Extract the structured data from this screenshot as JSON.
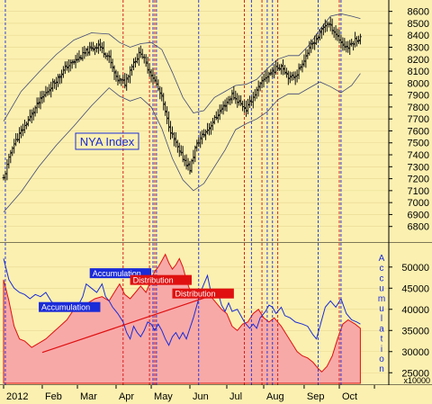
{
  "chart_data": [
    {
      "type": "ohlc",
      "panel": "price",
      "label": "NYA Index",
      "y_ticks": [
        6800,
        6900,
        7000,
        7100,
        7200,
        7300,
        7400,
        7500,
        7600,
        7700,
        7800,
        7900,
        8000,
        8100,
        8200,
        8300,
        8400,
        8500,
        8600
      ],
      "ylim": [
        6700,
        8650
      ],
      "month_starts": [
        0,
        22,
        42,
        64,
        84,
        106,
        127,
        148,
        171,
        191,
        211
      ],
      "n_days": 213,
      "close_anchors": [
        [
          0,
          7200
        ],
        [
          5,
          7470
        ],
        [
          12,
          7640
        ],
        [
          20,
          7840
        ],
        [
          28,
          7990
        ],
        [
          36,
          8140
        ],
        [
          42,
          8200
        ],
        [
          48,
          8270
        ],
        [
          54,
          8320
        ],
        [
          60,
          8210
        ],
        [
          64,
          8040
        ],
        [
          69,
          8000
        ],
        [
          73,
          8150
        ],
        [
          78,
          8260
        ],
        [
          82,
          8130
        ],
        [
          86,
          8020
        ],
        [
          90,
          7880
        ],
        [
          93,
          7690
        ],
        [
          96,
          7560
        ],
        [
          100,
          7420
        ],
        [
          104,
          7330
        ],
        [
          106,
          7280
        ],
        [
          109,
          7450
        ],
        [
          112,
          7540
        ],
        [
          116,
          7610
        ],
        [
          121,
          7720
        ],
        [
          126,
          7820
        ],
        [
          130,
          7900
        ],
        [
          134,
          7840
        ],
        [
          138,
          7780
        ],
        [
          141,
          7860
        ],
        [
          145,
          7960
        ],
        [
          149,
          8050
        ],
        [
          154,
          8110
        ],
        [
          158,
          8150
        ],
        [
          163,
          8040
        ],
        [
          167,
          8080
        ],
        [
          171,
          8200
        ],
        [
          175,
          8310
        ],
        [
          179,
          8390
        ],
        [
          182,
          8470
        ],
        [
          184,
          8500
        ],
        [
          187,
          8460
        ],
        [
          190,
          8390
        ],
        [
          193,
          8320
        ],
        [
          196,
          8300
        ],
        [
          200,
          8360
        ],
        [
          203,
          8380
        ]
      ],
      "bollinger": {
        "upper": [
          [
            0,
            7680
          ],
          [
            10,
            7930
          ],
          [
            20,
            8090
          ],
          [
            30,
            8240
          ],
          [
            40,
            8360
          ],
          [
            50,
            8420
          ],
          [
            60,
            8410
          ],
          [
            66,
            8340
          ],
          [
            72,
            8300
          ],
          [
            78,
            8330
          ],
          [
            84,
            8340
          ],
          [
            90,
            8280
          ],
          [
            96,
            8090
          ],
          [
            102,
            7880
          ],
          [
            108,
            7750
          ],
          [
            114,
            7770
          ],
          [
            120,
            7880
          ],
          [
            126,
            7930
          ],
          [
            132,
            7980
          ],
          [
            138,
            7990
          ],
          [
            144,
            8030
          ],
          [
            150,
            8120
          ],
          [
            156,
            8200
          ],
          [
            162,
            8230
          ],
          [
            168,
            8230
          ],
          [
            174,
            8320
          ],
          [
            180,
            8450
          ],
          [
            186,
            8560
          ],
          [
            192,
            8580
          ],
          [
            198,
            8560
          ],
          [
            203,
            8540
          ]
        ],
        "lower": [
          [
            0,
            6920
          ],
          [
            10,
            7090
          ],
          [
            20,
            7300
          ],
          [
            30,
            7480
          ],
          [
            40,
            7640
          ],
          [
            50,
            7810
          ],
          [
            60,
            7960
          ],
          [
            66,
            7890
          ],
          [
            72,
            7850
          ],
          [
            78,
            7880
          ],
          [
            84,
            7800
          ],
          [
            90,
            7620
          ],
          [
            96,
            7370
          ],
          [
            102,
            7190
          ],
          [
            108,
            7100
          ],
          [
            114,
            7160
          ],
          [
            120,
            7300
          ],
          [
            126,
            7440
          ],
          [
            132,
            7610
          ],
          [
            138,
            7660
          ],
          [
            144,
            7700
          ],
          [
            150,
            7760
          ],
          [
            156,
            7860
          ],
          [
            162,
            7910
          ],
          [
            168,
            7910
          ],
          [
            174,
            7960
          ],
          [
            180,
            8010
          ],
          [
            186,
            7970
          ],
          [
            192,
            7920
          ],
          [
            198,
            7980
          ],
          [
            203,
            8080
          ]
        ]
      }
    },
    {
      "type": "area-line",
      "panel": "indicator",
      "y_ticks": [
        25000,
        30000,
        35000,
        40000,
        45000,
        50000
      ],
      "ylim": [
        22500,
        54000
      ],
      "multiplier_label": "x10000",
      "vertical_legend": "Accumulation",
      "area_series": [
        [
          0,
          47000
        ],
        [
          3,
          42000
        ],
        [
          6,
          36000
        ],
        [
          9,
          33000
        ],
        [
          12,
          32500
        ],
        [
          16,
          31000
        ],
        [
          20,
          32000
        ],
        [
          24,
          33000
        ],
        [
          28,
          34500
        ],
        [
          32,
          36000
        ],
        [
          36,
          37500
        ],
        [
          40,
          40000
        ],
        [
          44,
          41500
        ],
        [
          48,
          41500
        ],
        [
          52,
          42500
        ],
        [
          56,
          43000
        ],
        [
          60,
          42000
        ],
        [
          63,
          44000
        ],
        [
          66,
          46000
        ],
        [
          69,
          43500
        ],
        [
          72,
          42500
        ],
        [
          75,
          44000
        ],
        [
          78,
          45500
        ],
        [
          81,
          44000
        ],
        [
          84,
          47000
        ],
        [
          86,
          49000
        ],
        [
          88,
          50000
        ],
        [
          90,
          51500
        ],
        [
          92,
          53000
        ],
        [
          94,
          51000
        ],
        [
          96,
          49500
        ],
        [
          98,
          50500
        ],
        [
          100,
          52000
        ],
        [
          102,
          50000
        ],
        [
          104,
          47000
        ],
        [
          106,
          44500
        ],
        [
          109,
          43500
        ],
        [
          112,
          44000
        ],
        [
          115,
          44500
        ],
        [
          118,
          43000
        ],
        [
          121,
          41500
        ],
        [
          124,
          40000
        ],
        [
          127,
          39000
        ],
        [
          130,
          36000
        ],
        [
          133,
          35000
        ],
        [
          136,
          36500
        ],
        [
          139,
          37000
        ],
        [
          142,
          39000
        ],
        [
          145,
          40000
        ],
        [
          148,
          38000
        ],
        [
          151,
          37000
        ],
        [
          154,
          38000
        ],
        [
          156,
          37000
        ],
        [
          158,
          36000
        ],
        [
          161,
          34000
        ],
        [
          164,
          32000
        ],
        [
          167,
          30000
        ],
        [
          170,
          29000
        ],
        [
          173,
          28500
        ],
        [
          176,
          27500
        ],
        [
          179,
          26000
        ],
        [
          181,
          25200
        ],
        [
          184,
          26500
        ],
        [
          187,
          29000
        ],
        [
          190,
          33000
        ],
        [
          193,
          36500
        ],
        [
          196,
          37500
        ],
        [
          200,
          36500
        ],
        [
          203,
          35500
        ]
      ],
      "blue_series": [
        [
          0,
          52000
        ],
        [
          3,
          47000
        ],
        [
          6,
          45000
        ],
        [
          9,
          44000
        ],
        [
          12,
          43500
        ],
        [
          15,
          42500
        ],
        [
          18,
          43500
        ],
        [
          21,
          43000
        ],
        [
          24,
          44000
        ],
        [
          27,
          42000
        ],
        [
          30,
          40500
        ],
        [
          33,
          39500
        ],
        [
          36,
          40000
        ],
        [
          39,
          41000
        ],
        [
          42,
          40500
        ],
        [
          45,
          43000
        ],
        [
          47,
          46000
        ],
        [
          50,
          45000
        ],
        [
          53,
          44000
        ],
        [
          56,
          46000
        ],
        [
          58,
          43000
        ],
        [
          60,
          42000
        ],
        [
          62,
          40500
        ],
        [
          65,
          39000
        ],
        [
          68,
          37000
        ],
        [
          70,
          34500
        ],
        [
          72,
          33000
        ],
        [
          74,
          36000
        ],
        [
          76,
          34500
        ],
        [
          78,
          33500
        ],
        [
          80,
          35000
        ],
        [
          82,
          37000
        ],
        [
          84,
          36500
        ],
        [
          86,
          35000
        ],
        [
          88,
          36500
        ],
        [
          90,
          35000
        ],
        [
          92,
          33000
        ],
        [
          94,
          31500
        ],
        [
          96,
          33500
        ],
        [
          98,
          34500
        ],
        [
          100,
          33000
        ],
        [
          102,
          34500
        ],
        [
          104,
          33000
        ],
        [
          106,
          35500
        ],
        [
          108,
          38000
        ],
        [
          110,
          41000
        ],
        [
          112,
          44000
        ],
        [
          114,
          46000
        ],
        [
          116,
          48000
        ],
        [
          118,
          44000
        ],
        [
          120,
          43000
        ],
        [
          122,
          44000
        ],
        [
          124,
          41000
        ],
        [
          126,
          39500
        ],
        [
          128,
          41500
        ],
        [
          130,
          39500
        ],
        [
          133,
          40000
        ],
        [
          135,
          38500
        ],
        [
          137,
          37000
        ],
        [
          140,
          35500
        ],
        [
          142,
          36500
        ],
        [
          144,
          35500
        ],
        [
          146,
          38000
        ],
        [
          149,
          39500
        ],
        [
          151,
          41000
        ],
        [
          153,
          40500
        ],
        [
          155,
          39000
        ],
        [
          158,
          40500
        ],
        [
          160,
          38500
        ],
        [
          163,
          38000
        ],
        [
          166,
          37000
        ],
        [
          170,
          36500
        ],
        [
          173,
          36000
        ],
        [
          176,
          34000
        ],
        [
          178,
          33000
        ],
        [
          180,
          36000
        ],
        [
          183,
          40500
        ],
        [
          186,
          42000
        ],
        [
          189,
          40500
        ],
        [
          192,
          42500
        ],
        [
          195,
          39000
        ],
        [
          198,
          37500
        ],
        [
          201,
          37000
        ],
        [
          203,
          36500
        ]
      ],
      "trendline": [
        [
          22,
          29800
        ],
        [
          120,
          43500
        ]
      ],
      "labels": [
        {
          "text": "Accumulation",
          "x": 20,
          "y": 39800,
          "fill": "#1a2bd8",
          "color": "#ffffff"
        },
        {
          "text": "Accumulation",
          "x": 49,
          "y": 47800,
          "fill": "#1a2bd8",
          "color": "#ffffff"
        },
        {
          "text": "Distribution",
          "x": 72,
          "y": 46200,
          "fill": "#e01010",
          "color": "#ffffff"
        },
        {
          "text": "Distribution",
          "x": 96,
          "y": 43000,
          "fill": "#e01010",
          "color": "#ffffff"
        }
      ]
    }
  ],
  "x_axis": {
    "labels": [
      "2012",
      "Feb",
      "Mar",
      "Apr",
      "May",
      "Jun",
      "Jul",
      "Aug",
      "Sep",
      "Oct"
    ],
    "label_positions": [
      0,
      22,
      42,
      64,
      84,
      106,
      127,
      148,
      171,
      191
    ]
  },
  "markers": {
    "blue": [
      1,
      85,
      87,
      111,
      141,
      150,
      153,
      179,
      192
    ],
    "red": [
      68,
      83,
      86,
      137,
      147,
      156,
      191
    ]
  },
  "colors": {
    "background": "#fbf0b0",
    "price_bar": "#111111",
    "band": "#404878",
    "area_fill": "#f7a9a8",
    "area_stroke": "#e01010",
    "blue_line": "#1a2bd8",
    "marker_red": "#d01010",
    "marker_blue": "#1a2bd8"
  }
}
